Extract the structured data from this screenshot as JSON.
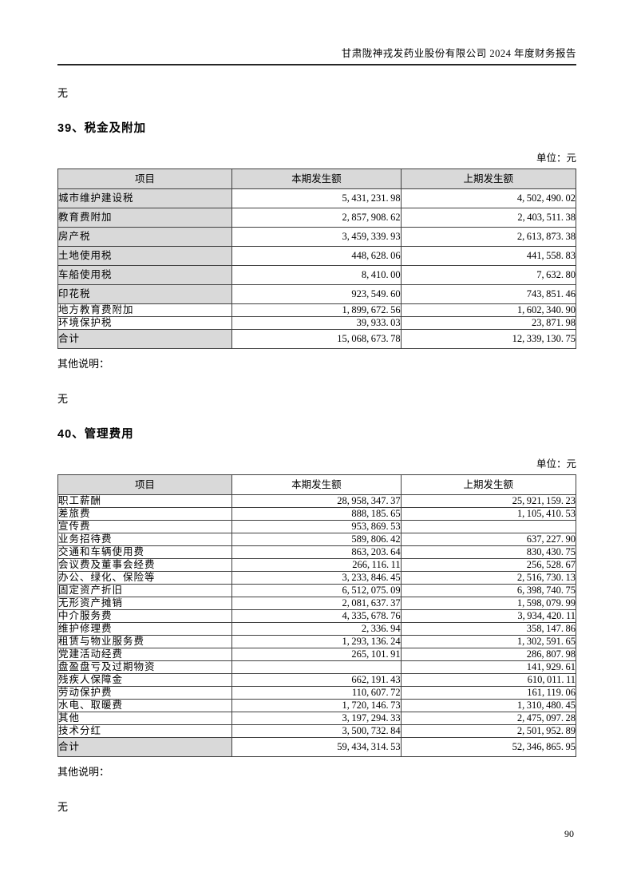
{
  "page": {
    "header_title": "甘肃陇神戎发药业股份有限公司 2024 年度财务报告",
    "page_number": "90"
  },
  "colors": {
    "table_header_shade": "#d9d9d9",
    "border": "#404040"
  },
  "sections": [
    {
      "pre_note": "无",
      "heading": "39、税金及附加",
      "unit_label": "单位：元",
      "columns": [
        "项目",
        "本期发生额",
        "上期发生额"
      ],
      "header_full_shaded": true,
      "rows": [
        {
          "label": "城市维护建设税",
          "current": "5,431,231.98",
          "prior": "4,502,490.02",
          "shaded": true,
          "tall": true
        },
        {
          "label": "教育费附加",
          "current": "2,857,908.62",
          "prior": "2,403,511.38",
          "shaded": true,
          "tall": true
        },
        {
          "label": "房产税",
          "current": "3,459,339.93",
          "prior": "2,613,873.38",
          "shaded": true,
          "tall": true
        },
        {
          "label": "土地使用税",
          "current": "448,628.06",
          "prior": "441,558.83",
          "shaded": true,
          "tall": true
        },
        {
          "label": "车船使用税",
          "current": "8,410.00",
          "prior": "7,632.80",
          "shaded": true,
          "tall": true
        },
        {
          "label": "印花税",
          "current": "923,549.60",
          "prior": "743,851.46",
          "shaded": true,
          "tall": true
        },
        {
          "label": "地方教育费附加",
          "current": "1,899,672.56",
          "prior": "1,602,340.90",
          "shaded": false,
          "tall": false
        },
        {
          "label": "环境保护税",
          "current": "39,933.03",
          "prior": "23,871.98",
          "shaded": false,
          "tall": false
        },
        {
          "label": "合计",
          "current": "15,068,673.78",
          "prior": "12,339,130.75",
          "shaded": true,
          "tall": true
        }
      ],
      "other_note_label": "其他说明：",
      "other_note_value": "无"
    },
    {
      "pre_note": "",
      "heading": "40、管理费用",
      "unit_label": "单位：元",
      "columns": [
        "项目",
        "本期发生额",
        "上期发生额"
      ],
      "header_full_shaded": false,
      "rows": [
        {
          "label": "职工薪酬",
          "current": "28,958,347.37",
          "prior": "25,921,159.23",
          "shaded": false,
          "tall": false
        },
        {
          "label": "差旅费",
          "current": "888,185.65",
          "prior": "1,105,410.53",
          "shaded": false,
          "tall": false
        },
        {
          "label": "宣传费",
          "current": "953,869.53",
          "prior": "",
          "shaded": false,
          "tall": false
        },
        {
          "label": "业务招待费",
          "current": "589,806.42",
          "prior": "637,227.90",
          "shaded": false,
          "tall": false
        },
        {
          "label": "交通和车辆使用费",
          "current": "863,203.64",
          "prior": "830,430.75",
          "shaded": false,
          "tall": false
        },
        {
          "label": "会议费及董事会经费",
          "current": "266,116.11",
          "prior": "256,528.67",
          "shaded": false,
          "tall": false
        },
        {
          "label": "办公、绿化、保险等",
          "current": "3,233,846.45",
          "prior": "2,516,730.13",
          "shaded": false,
          "tall": false
        },
        {
          "label": "固定资产折旧",
          "current": "6,512,075.09",
          "prior": "6,398,740.75",
          "shaded": false,
          "tall": false
        },
        {
          "label": "无形资产摊销",
          "current": "2,081,637.37",
          "prior": "1,598,079.99",
          "shaded": false,
          "tall": false
        },
        {
          "label": "中介服务费",
          "current": "4,335,678.76",
          "prior": "3,934,420.11",
          "shaded": false,
          "tall": false
        },
        {
          "label": "维护修理费",
          "current": "2,336.94",
          "prior": "358,147.86",
          "shaded": false,
          "tall": false
        },
        {
          "label": "租赁与物业服务费",
          "current": "1,293,136.24",
          "prior": "1,302,591.65",
          "shaded": false,
          "tall": false
        },
        {
          "label": "党建活动经费",
          "current": "265,101.91",
          "prior": "286,807.98",
          "shaded": false,
          "tall": false
        },
        {
          "label": "盘盈盘亏及过期物资",
          "current": "",
          "prior": "141,929.61",
          "shaded": false,
          "tall": false
        },
        {
          "label": "残疾人保障金",
          "current": "662,191.43",
          "prior": "610,011.11",
          "shaded": false,
          "tall": false
        },
        {
          "label": "劳动保护费",
          "current": "110,607.72",
          "prior": "161,119.06",
          "shaded": false,
          "tall": false
        },
        {
          "label": "水电、取暖费",
          "current": "1,720,146.73",
          "prior": "1,310,480.45",
          "shaded": false,
          "tall": false
        },
        {
          "label": "其他",
          "current": "3,197,294.33",
          "prior": "2,475,097.28",
          "shaded": false,
          "tall": false
        },
        {
          "label": "技术分红",
          "current": "3,500,732.84",
          "prior": "2,501,952.89",
          "shaded": false,
          "tall": false
        },
        {
          "label": "合计",
          "current": "59,434,314.53",
          "prior": "52,346,865.95",
          "shaded": true,
          "tall": true
        }
      ],
      "other_note_label": "其他说明：",
      "other_note_value": "无"
    }
  ]
}
